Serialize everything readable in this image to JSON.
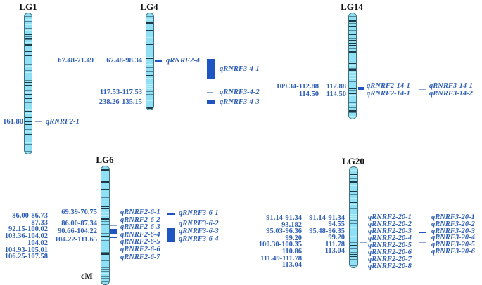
{
  "colors": {
    "label": "#2f5fb3",
    "marker": "#1f55c0",
    "chromosome": "#8fe0f4",
    "band": "#1d3a44"
  },
  "unit": "cM",
  "lg1": {
    "name": "LG1",
    "pos": [
      "161.80"
    ],
    "qtl2": [
      "qRNRF2-1"
    ]
  },
  "lg4": {
    "name": "LG4",
    "pos_a": [
      "67.48-71.49"
    ],
    "pos_b": [
      "67.48-98.34",
      "117.53-117.53",
      "238.26-135.15"
    ],
    "qtl2": [
      "qRNRF2-4"
    ],
    "qtl3": [
      "qRNRF3-4-1",
      "qRNRF3-4-2",
      "qRNRF3-4-3"
    ]
  },
  "lg14": {
    "name": "LG14",
    "pos_a": [
      "109.34-112.88",
      "114.50"
    ],
    "pos_b": [
      "112.88",
      "114.50"
    ],
    "qtl2": [
      "qRNRF2-14-1",
      "qRNRF2-14-1"
    ],
    "qtl3": [
      "qRNRF3-14-1",
      "qRNRF3-14-2"
    ]
  },
  "lg6": {
    "name": "LG6",
    "pos_a": [
      "86.00-86.73",
      "87.33",
      "92.15-100.02",
      "103.36-104.02",
      "104.02",
      "104.93-105.01",
      "106.25-107.58"
    ],
    "pos_b": [
      "69.39-70.75",
      "86.00-87.34",
      "90.66-104.22",
      "104.22-111.65"
    ],
    "qtl2": [
      "qRNRF2-6-1",
      "qRNRF2-6-2",
      "qRNRF2-6-3",
      "qRNRF2-6-4",
      "qRNRF2-6-5",
      "qRNRF2-6-6",
      "qRNRF2-6-7"
    ],
    "qtl3": [
      "qRNRF3-6-1",
      "qRNRF3-6-2",
      "qRNRF3-6-3",
      "qRNRF3-6-4"
    ]
  },
  "lg20": {
    "name": "LG20",
    "pos_a": [
      "91.14-91.34",
      "93.182",
      "95.03-96.36",
      "99.20",
      "100.30-100.35",
      "110.86",
      "111.49-111.78",
      "113.04"
    ],
    "pos_b": [
      "91.14-91.34",
      "94.55",
      "95.48-96.35",
      "99.20",
      "111.78",
      "113.04"
    ],
    "qtl2": [
      "qRNRF2-20-1",
      "qRNRF2-20-2",
      "qRNRF2-20-3",
      "qRNRF2-20-4",
      "qRNRF2-20-5",
      "qRNRF2-20-6",
      "qRNRF2-20-7",
      "qRNRF2-20-8"
    ],
    "qtl3": [
      "qRNRF3-20-1",
      "qRNRF3-20-2",
      "qRNRF3-20-3",
      "qRNRF3-20-4",
      "qRNRF3-20-5",
      "qRNRF3-20-6"
    ]
  }
}
